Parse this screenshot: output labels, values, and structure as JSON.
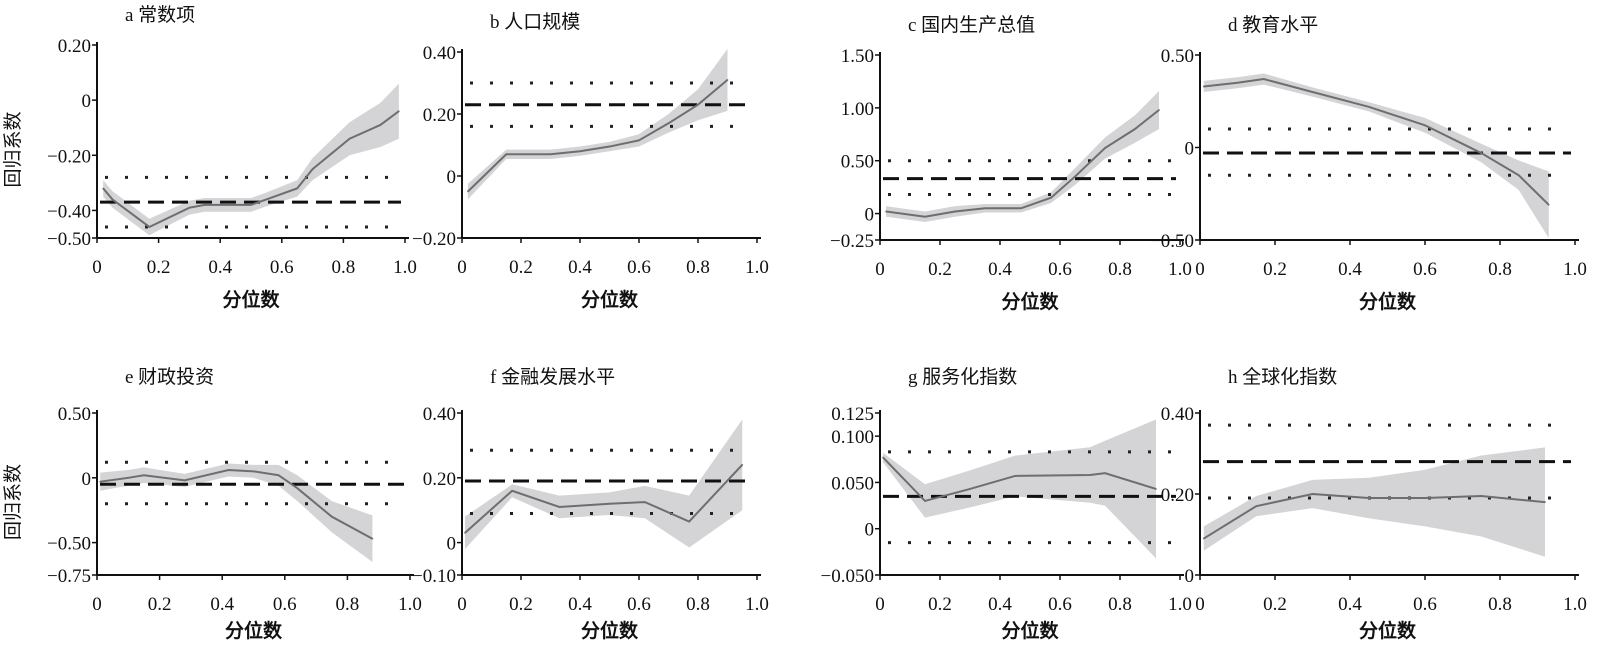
{
  "chart_data": [
    {
      "id": "a",
      "type": "line",
      "title": "a 常数项",
      "xlabel": "分位数",
      "ylabel": "回归系数",
      "xlim": [
        0,
        1
      ],
      "xticks": [
        "0",
        "0.2",
        "0.4",
        "0.6",
        "0.8",
        "1.0"
      ],
      "ylim": [
        -0.5,
        0.2
      ],
      "yticks": [
        0.2,
        0,
        -0.2,
        -0.4,
        -0.5
      ],
      "ytick_labels": [
        "0.20",
        "0",
        "−0.20",
        "−0.40",
        "−0.50"
      ],
      "ols": -0.37,
      "ols_ci": [
        -0.46,
        -0.28
      ],
      "quantile": {
        "x": [
          0.02,
          0.05,
          0.17,
          0.3,
          0.35,
          0.5,
          0.55,
          0.65,
          0.7,
          0.82,
          0.92,
          0.98
        ],
        "y": [
          -0.32,
          -0.36,
          -0.46,
          -0.39,
          -0.38,
          -0.38,
          -0.36,
          -0.32,
          -0.25,
          -0.14,
          -0.09,
          -0.04
        ],
        "ci_halfwidth": [
          0.03,
          0.03,
          0.03,
          0.025,
          0.025,
          0.025,
          0.025,
          0.03,
          0.04,
          0.06,
          0.08,
          0.1
        ]
      }
    },
    {
      "id": "b",
      "type": "line",
      "title": "b 人口规模",
      "xlabel": "分位数",
      "ylabel": "",
      "xlim": [
        0,
        1
      ],
      "xticks": [
        "0",
        "0.2",
        "0.4",
        "0.6",
        "0.8",
        "1.0"
      ],
      "ylim": [
        -0.2,
        0.4
      ],
      "yticks": [
        0.4,
        0.2,
        0,
        -0.2
      ],
      "ytick_labels": [
        "0.40",
        "0.20",
        "0",
        "−0.20"
      ],
      "ols": 0.23,
      "ols_ci": [
        0.16,
        0.3
      ],
      "quantile": {
        "x": [
          0.02,
          0.15,
          0.3,
          0.4,
          0.5,
          0.6,
          0.7,
          0.8,
          0.9
        ],
        "y": [
          -0.05,
          0.07,
          0.07,
          0.08,
          0.095,
          0.115,
          0.17,
          0.23,
          0.31
        ],
        "ci_halfwidth": [
          0.025,
          0.015,
          0.015,
          0.015,
          0.015,
          0.02,
          0.03,
          0.05,
          0.1
        ]
      }
    },
    {
      "id": "c",
      "type": "line",
      "title": "c 国内生产总值",
      "xlabel": "分位数",
      "ylabel": "",
      "xlim": [
        0,
        1
      ],
      "xticks": [
        "0",
        "0.2",
        "0.4",
        "0.6",
        "0.8",
        "1.0"
      ],
      "ylim": [
        -0.25,
        1.5
      ],
      "yticks": [
        1.5,
        1.0,
        0.5,
        0,
        -0.25
      ],
      "ytick_labels": [
        "1.50",
        "1.00",
        "0.50",
        "0",
        "−0.25"
      ],
      "ols": 0.33,
      "ols_ci": [
        0.18,
        0.5
      ],
      "quantile": {
        "x": [
          0.02,
          0.15,
          0.25,
          0.35,
          0.47,
          0.57,
          0.65,
          0.75,
          0.85,
          0.93
        ],
        "y": [
          0.02,
          -0.03,
          0.02,
          0.05,
          0.05,
          0.15,
          0.35,
          0.62,
          0.8,
          0.98
        ],
        "ci_halfwidth": [
          0.05,
          0.05,
          0.05,
          0.04,
          0.04,
          0.05,
          0.08,
          0.1,
          0.13,
          0.18
        ]
      }
    },
    {
      "id": "d",
      "type": "line",
      "title": "d 教育水平",
      "xlabel": "分位数",
      "ylabel": "",
      "xlim": [
        0,
        1
      ],
      "xticks": [
        "0",
        "0.2",
        "0.4",
        "0.6",
        "0.8",
        "1.0"
      ],
      "ylim": [
        -0.5,
        0.5
      ],
      "yticks": [
        0.5,
        0,
        -0.5
      ],
      "ytick_labels": [
        "0.50",
        "0",
        "−0.50"
      ],
      "ols": -0.03,
      "ols_ci": [
        -0.15,
        0.1
      ],
      "quantile": {
        "x": [
          0.01,
          0.1,
          0.17,
          0.3,
          0.45,
          0.6,
          0.75,
          0.85,
          0.93
        ],
        "y": [
          0.33,
          0.35,
          0.37,
          0.3,
          0.22,
          0.12,
          -0.03,
          -0.15,
          -0.31
        ],
        "ci_halfwidth": [
          0.03,
          0.03,
          0.03,
          0.025,
          0.025,
          0.04,
          0.05,
          0.08,
          0.18
        ]
      }
    },
    {
      "id": "e",
      "type": "line",
      "title": "e 财政投资",
      "xlabel": "分位数",
      "ylabel": "回归系数",
      "xlim": [
        0,
        1
      ],
      "xticks": [
        "0",
        "0.2",
        "0.4",
        "0.6",
        "0.8",
        "1.0"
      ],
      "ylim": [
        -0.75,
        0.5
      ],
      "yticks": [
        0.5,
        0,
        -0.5,
        -0.75
      ],
      "ytick_labels": [
        "0.50",
        "0",
        "−0.50",
        "−0.75"
      ],
      "ols": -0.05,
      "ols_ci": [
        -0.2,
        0.12
      ],
      "quantile": {
        "x": [
          0.01,
          0.1,
          0.15,
          0.28,
          0.42,
          0.5,
          0.58,
          0.64,
          0.75,
          0.88
        ],
        "y": [
          -0.03,
          0.0,
          0.02,
          -0.02,
          0.06,
          0.05,
          0.02,
          -0.08,
          -0.3,
          -0.47
        ],
        "ci_halfwidth": [
          0.07,
          0.06,
          0.06,
          0.05,
          0.05,
          0.05,
          0.08,
          0.1,
          0.12,
          0.18
        ]
      }
    },
    {
      "id": "f",
      "type": "line",
      "title": "f 金融发展水平",
      "xlabel": "分位数",
      "ylabel": "",
      "xlim": [
        0,
        1
      ],
      "xticks": [
        "0",
        "0.2",
        "0.4",
        "0.6",
        "0.8",
        "1.0"
      ],
      "ylim": [
        -0.1,
        0.4
      ],
      "yticks": [
        0.4,
        0.2,
        0,
        -0.1
      ],
      "ytick_labels": [
        "0.40",
        "0.20",
        "0",
        "−0.10"
      ],
      "ols": 0.19,
      "ols_ci": [
        0.09,
        0.285
      ],
      "quantile": {
        "x": [
          0.01,
          0.17,
          0.33,
          0.5,
          0.62,
          0.77,
          0.95
        ],
        "y": [
          0.03,
          0.16,
          0.11,
          0.12,
          0.125,
          0.065,
          0.24
        ],
        "ci_halfwidth": [
          0.05,
          0.02,
          0.035,
          0.035,
          0.05,
          0.08,
          0.14
        ]
      }
    },
    {
      "id": "g",
      "type": "line",
      "title": "g 服务化指数",
      "xlabel": "分位数",
      "ylabel": "",
      "xlim": [
        0,
        1
      ],
      "xticks": [
        "0",
        "0.2",
        "0.4",
        "0.6",
        "0.8",
        "1.0"
      ],
      "ylim": [
        -0.05,
        0.125
      ],
      "yticks": [
        0.125,
        0.1,
        0.05,
        0,
        -0.05
      ],
      "ytick_labels": [
        "0.125",
        "0.100",
        "0.050",
        "0",
        "−0.050"
      ],
      "ols": 0.035,
      "ols_ci": [
        -0.015,
        0.083
      ],
      "quantile": {
        "x": [
          0.01,
          0.15,
          0.3,
          0.45,
          0.7,
          0.75,
          0.92
        ],
        "y": [
          0.077,
          0.03,
          0.043,
          0.057,
          0.058,
          0.06,
          0.043
        ],
        "ci_halfwidth": [
          0.005,
          0.018,
          0.02,
          0.022,
          0.03,
          0.035,
          0.075
        ]
      }
    },
    {
      "id": "h",
      "type": "line",
      "title": "h 全球化指数",
      "xlabel": "分位数",
      "ylabel": "",
      "xlim": [
        0,
        1
      ],
      "xticks": [
        "0",
        "0.2",
        "0.4",
        "0.6",
        "0.8",
        "1.0"
      ],
      "ylim": [
        0,
        0.4
      ],
      "yticks": [
        0.4,
        0.2,
        0
      ],
      "ytick_labels": [
        "0.40",
        "0.20",
        "0"
      ],
      "ols": 0.28,
      "ols_ci": [
        0.19,
        0.37
      ],
      "quantile": {
        "x": [
          0.01,
          0.15,
          0.3,
          0.45,
          0.6,
          0.75,
          0.92
        ],
        "y": [
          0.09,
          0.17,
          0.2,
          0.19,
          0.19,
          0.195,
          0.18
        ],
        "ci_halfwidth": [
          0.03,
          0.025,
          0.035,
          0.05,
          0.07,
          0.1,
          0.135
        ]
      }
    }
  ],
  "colors": {
    "band": "#d4d4d6",
    "line": "#6e6e70",
    "ols": "#111111",
    "axis": "#111111"
  }
}
